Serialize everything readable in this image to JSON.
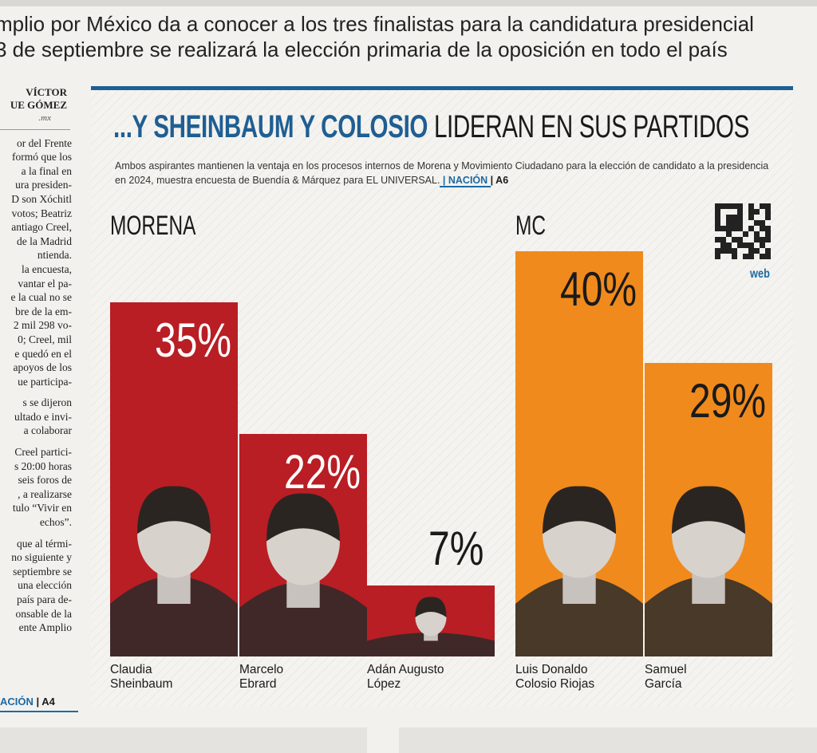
{
  "headline": {
    "line1": "mplio por México da a conocer a los tres finalistas para la candidatura presidencial",
    "line2": "3 de septiembre se realizará la elección primaria de la oposición en todo el país"
  },
  "left_column": {
    "byline": [
      "VÍCTOR",
      "UE GÓMEZ"
    ],
    "byline_email": ".mx",
    "lines": [
      "or del Frente",
      "formó que los",
      "a la final en",
      "ura presiden-",
      "D son Xóchitl",
      "votos; Beatriz",
      "antiago Creel,",
      "de la Madrid",
      "ntienda.",
      "la encuesta,",
      "vantar el pa-",
      "e la cual no se",
      "bre de la em-",
      "2 mil 298 vo-",
      "0; Creel, mil",
      "e quedó en el",
      "apoyos de los",
      "ue participa-",
      "",
      "s se dijeron",
      "ultado e invi-",
      "a colaborar",
      "",
      "Creel partici-",
      "s 20:00 horas",
      "seis foros de",
      ", a realizarse",
      "tulo “Vivir en",
      "echos”.",
      "",
      "que al térmi-",
      "no siguiente y",
      "septiembre se",
      "una elección",
      "país para de-",
      "onsable de la",
      "ente Amplio"
    ],
    "ref_section": "ACIÓN",
    "ref_sep": " | ",
    "ref_page": "A4"
  },
  "infographic": {
    "title_part1": "...Y SHEINBAUM Y COLOSIO",
    "title_part2": " LIDERAN EN SUS PARTIDOS",
    "subtitle": "Ambos aspirantes mantienen la ventaja en los procesos internos de Morena y Movimiento Ciudadano para la elección de candidato a la presidencia en 2024, muestra encuesta de Buendía & Márquez para EL UNIVERSAL.",
    "subtitle_ref": " | NACIÓN ",
    "subtitle_ref_page": "| A6",
    "web_label": "web",
    "colors": {
      "morena": "#b81e24",
      "mc": "#f08a1c",
      "title_blue": "#1f5e93",
      "rule_blue": "#1e5f94"
    }
  },
  "chart_data": {
    "type": "bar",
    "title": "...Y SHEINBAUM Y COLOSIO LIDERAN EN SUS PARTIDOS",
    "ylim": [
      0,
      40
    ],
    "groups": [
      {
        "name": "MORENA",
        "color": "#b81e24",
        "candidates": [
          {
            "name_line1": "Claudia",
            "name_line2": "Sheinbaum",
            "value": 35,
            "label": "35%",
            "label_color": "#ffffff"
          },
          {
            "name_line1": "Marcelo",
            "name_line2": "Ebrard",
            "value": 22,
            "label": "22%",
            "label_color": "#ffffff"
          },
          {
            "name_line1": "Adán Augusto",
            "name_line2": "López",
            "value": 7,
            "label": "7%",
            "label_color": "#1a1a1a"
          }
        ]
      },
      {
        "name": "MC",
        "color": "#f08a1c",
        "candidates": [
          {
            "name_line1": "Luis Donaldo",
            "name_line2": "Colosio Riojas",
            "value": 40,
            "label": "40%",
            "label_color": "#1a1a1a"
          },
          {
            "name_line1": "Samuel",
            "name_line2": "García",
            "value": 29,
            "label": "29%",
            "label_color": "#1a1a1a"
          }
        ]
      }
    ]
  }
}
